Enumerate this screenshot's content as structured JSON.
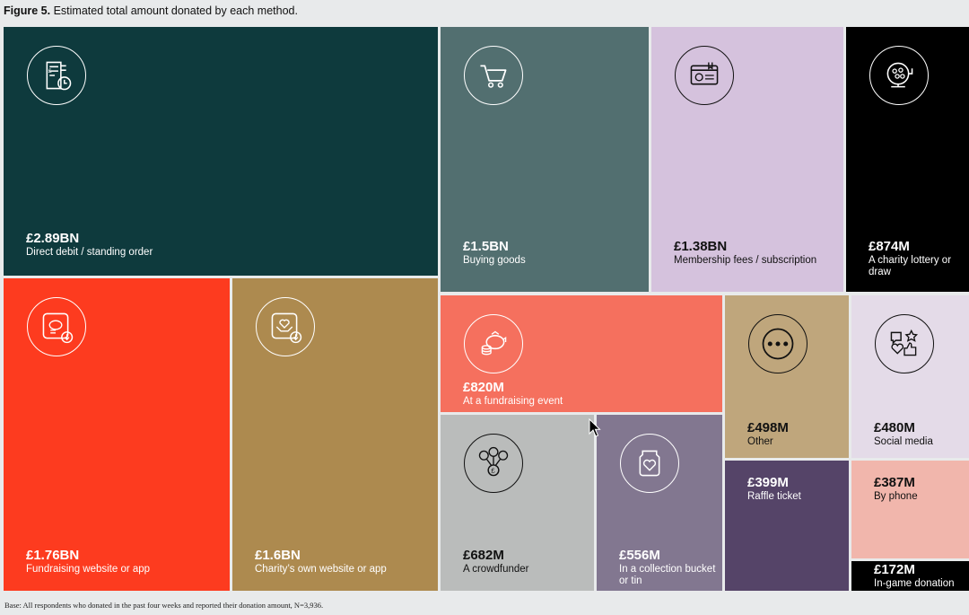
{
  "figure": {
    "label": "Figure 5.",
    "title": "Estimated total amount donated by each method."
  },
  "footnote": "Base: All respondents who donated in the past four weeks and reported their donation amount, N=3,936.",
  "chart_data": {
    "type": "treemap",
    "unit": "£",
    "items": [
      {
        "id": "direct-debit",
        "value_label": "£2.89BN",
        "value": 2890,
        "name": "Direct debit / standing order",
        "color": "#0e3a3d",
        "icon": "receipt-clock-icon"
      },
      {
        "id": "buying-goods",
        "value_label": "£1.5BN",
        "value": 1500,
        "name": "Buying goods",
        "color": "#526f70",
        "icon": "shopping-cart-icon"
      },
      {
        "id": "membership",
        "value_label": "£1.38BN",
        "value": 1380,
        "name": "Membership fees / subscription",
        "color": "#d5c2dd",
        "icon": "membership-card-icon"
      },
      {
        "id": "lottery",
        "value_label": "£874M",
        "value": 874,
        "name": "A charity lottery or draw",
        "color": "#000000",
        "icon": "lottery-drum-icon"
      },
      {
        "id": "fundraising-website",
        "value_label": "£1.76BN",
        "value": 1760,
        "name": "Fundraising website or app",
        "color": "#fd3b1f",
        "icon": "app-piggy-bank-icon"
      },
      {
        "id": "charity-website",
        "value_label": "£1.6BN",
        "value": 1600,
        "name": "Charity’s own website or app",
        "color": "#ad8a4f",
        "icon": "app-heart-hands-icon"
      },
      {
        "id": "fundraising-event",
        "value_label": "£820M",
        "value": 820,
        "name": "At a fundraising event",
        "color": "#f5705e",
        "icon": "piggy-bank-coins-icon"
      },
      {
        "id": "other",
        "value_label": "£498M",
        "value": 498,
        "name": "Other",
        "color": "#bfa67c",
        "icon": "ellipsis-icon"
      },
      {
        "id": "social-media",
        "value_label": "£480M",
        "value": 480,
        "name": "Social media",
        "color": "#e4dbe8",
        "icon": "social-reactions-icon"
      },
      {
        "id": "crowdfunder",
        "value_label": "£682M",
        "value": 682,
        "name": "A crowdfunder",
        "color": "#babcbb",
        "icon": "crowdfund-network-icon"
      },
      {
        "id": "collection-bucket",
        "value_label": "£556M",
        "value": 556,
        "name": "In a collection bucket or tin",
        "color": "#827790",
        "icon": "heart-jar-icon"
      },
      {
        "id": "raffle",
        "value_label": "£399M",
        "value": 399,
        "name": "Raffle ticket",
        "color": "#554468",
        "icon": ""
      },
      {
        "id": "phone",
        "value_label": "£387M",
        "value": 387,
        "name": "By phone",
        "color": "#f1b6ac",
        "icon": ""
      },
      {
        "id": "in-game",
        "value_label": "£172M",
        "value": 172,
        "name": "In-game donation",
        "color": "#000000",
        "icon": ""
      }
    ]
  }
}
